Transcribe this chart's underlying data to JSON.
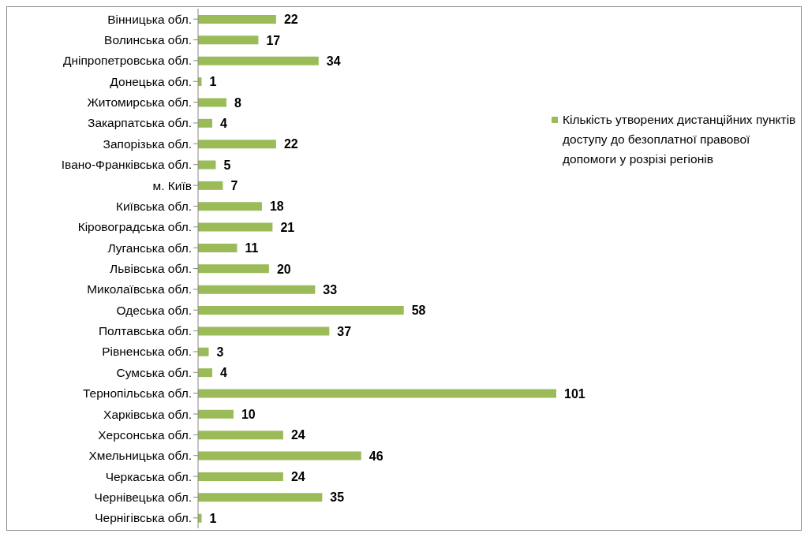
{
  "chart_data": {
    "type": "bar",
    "orientation": "horizontal",
    "categories": [
      "Вінницька обл.",
      "Волинська обл.",
      "Дніпропетровська обл.",
      "Донецька обл.",
      "Житомирська обл.",
      "Закарпатська обл.",
      "Запорізька обл.",
      "Івано-Франківська обл.",
      "м. Київ",
      "Київська обл.",
      "Кіровоградська обл.",
      "Луганська обл.",
      "Львівська обл.",
      "Миколаївська обл.",
      "Одеська обл.",
      "Полтавська обл.",
      "Рівненська обл.",
      "Сумська обл.",
      "Тернопільська обл.",
      "Харківська обл.",
      "Херсонська обл.",
      "Хмельницька обл.",
      "Черкаська обл.",
      "Чернівецька обл.",
      "Чернігівська обл."
    ],
    "series": [
      {
        "name": "Кількість утворених дистанційних пунктів доступу до безоплатної правової допомоги у розрізі регіонів",
        "color": "#9bbb59",
        "values": [
          22,
          17,
          34,
          1,
          8,
          4,
          22,
          5,
          7,
          18,
          21,
          11,
          20,
          33,
          58,
          37,
          3,
          4,
          101,
          10,
          24,
          46,
          24,
          35,
          1
        ]
      }
    ],
    "data_labels": true,
    "legend": "right"
  }
}
